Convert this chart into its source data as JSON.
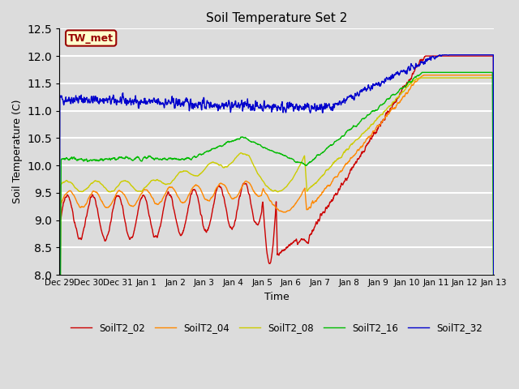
{
  "title": "Soil Temperature Set 2",
  "xlabel": "Time",
  "ylabel": "Soil Temperature (C)",
  "ylim": [
    8.0,
    12.5
  ],
  "background_color": "#dcdcdc",
  "plot_bg_color": "#dcdcdc",
  "grid_color": "white",
  "annotation_text": "TW_met",
  "annotation_box_color": "#ffffcc",
  "annotation_border_color": "#990000",
  "series_colors": {
    "SoilT2_02": "#cc0000",
    "SoilT2_04": "#ff8800",
    "SoilT2_08": "#cccc00",
    "SoilT2_16": "#00bb00",
    "SoilT2_32": "#0000cc"
  },
  "xtick_labels": [
    "Dec 29",
    "Dec 30",
    "Dec 31",
    "Jan 1",
    "Jan 2",
    "Jan 3",
    "Jan 4",
    "Jan 5",
    "Jan 6",
    "Jan 7",
    "Jan 8",
    "Jan 9",
    "Jan 10",
    "Jan 11",
    "Jan 12",
    "Jan 13"
  ],
  "n_days": 15,
  "points_per_day": 96
}
